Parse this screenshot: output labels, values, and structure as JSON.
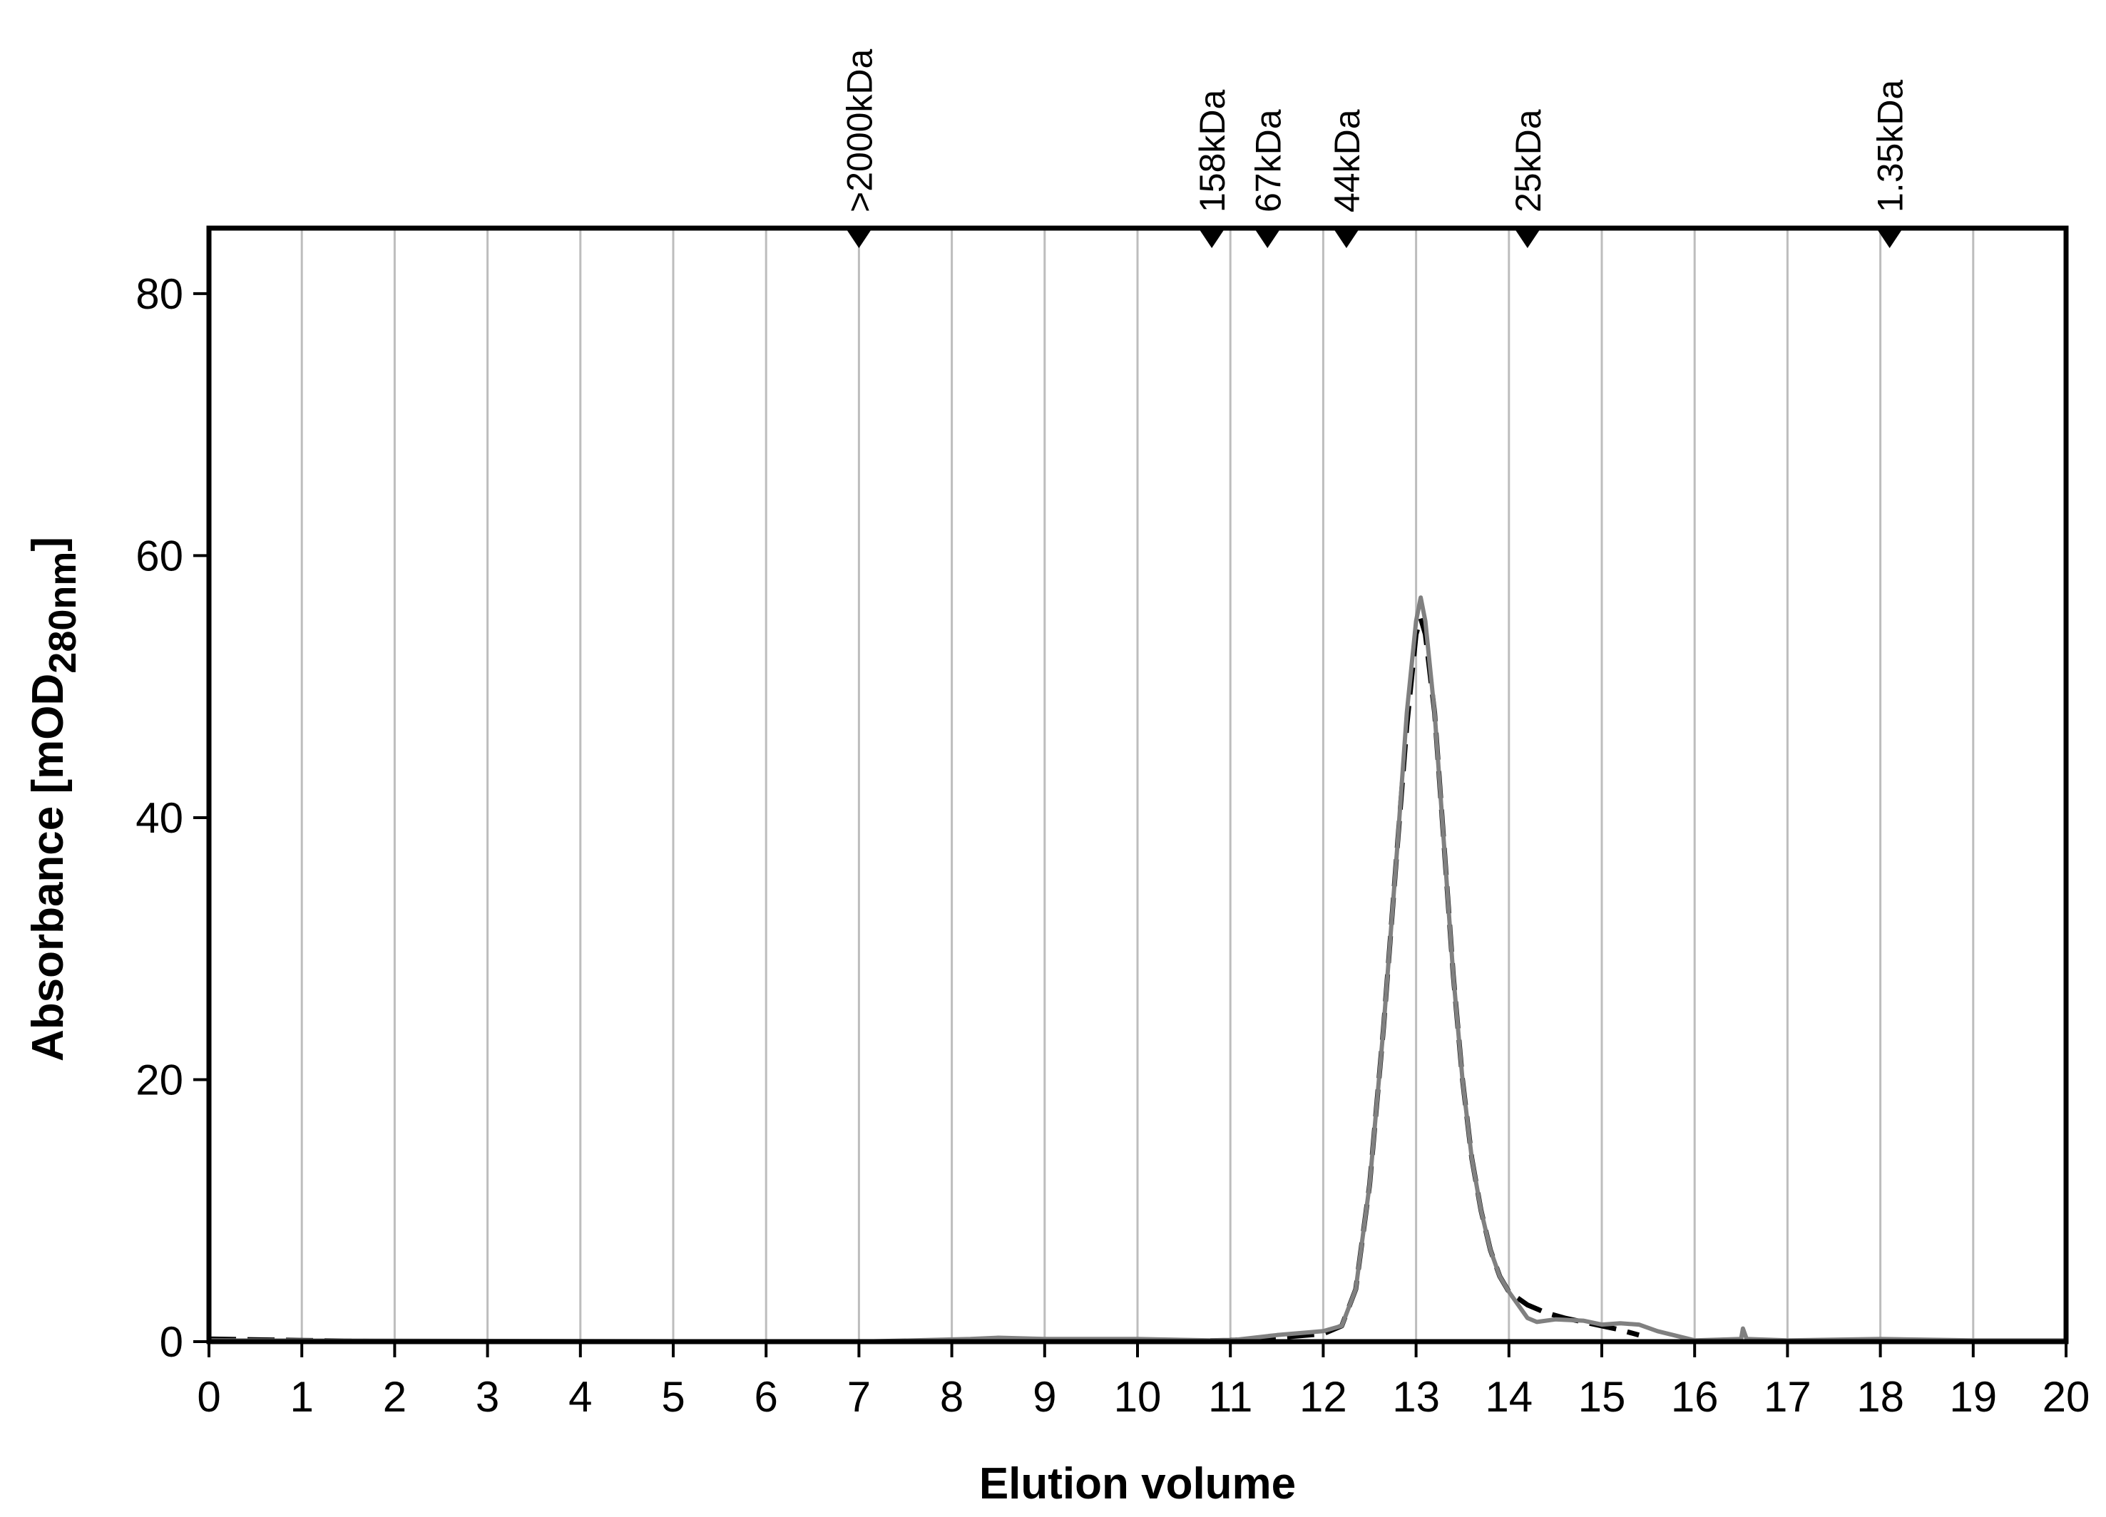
{
  "chart_data": {
    "type": "line",
    "xlabel": "Elution volume",
    "ylabel": {
      "prefix": "Absorbance [mOD",
      "subscript": "280nm",
      "suffix": "]"
    },
    "xlim": [
      0,
      20
    ],
    "ylim": [
      0,
      85
    ],
    "xticks": [
      0,
      1,
      2,
      3,
      4,
      5,
      6,
      7,
      8,
      9,
      10,
      11,
      12,
      13,
      14,
      15,
      16,
      17,
      18,
      19,
      20
    ],
    "yticks": [
      0,
      20,
      40,
      60,
      80
    ],
    "grid": "vertical",
    "legend": "none",
    "markers": [
      {
        "label": ">2000kDa",
        "x": 7.0
      },
      {
        "label": "158kDa",
        "x": 10.8
      },
      {
        "label": "67kDa",
        "x": 11.4
      },
      {
        "label": "44kDa",
        "x": 12.25
      },
      {
        "label": "25kDa",
        "x": 14.2
      },
      {
        "label": "1.35kDa",
        "x": 18.1
      }
    ],
    "series": [
      {
        "style": "dashed",
        "color": "#000000",
        "points": [
          [
            0,
            0.2
          ],
          [
            1,
            0.1
          ],
          [
            2,
            0
          ],
          [
            8,
            0
          ],
          [
            10,
            0
          ],
          [
            11,
            0.1
          ],
          [
            11.5,
            0.3
          ],
          [
            12,
            0.6
          ],
          [
            12.2,
            1.2
          ],
          [
            12.35,
            4
          ],
          [
            12.5,
            12
          ],
          [
            12.65,
            24
          ],
          [
            12.8,
            38
          ],
          [
            12.9,
            47
          ],
          [
            13.0,
            54
          ],
          [
            13.05,
            55.2
          ],
          [
            13.1,
            54
          ],
          [
            13.2,
            48
          ],
          [
            13.3,
            38
          ],
          [
            13.4,
            28
          ],
          [
            13.5,
            20
          ],
          [
            13.6,
            14
          ],
          [
            13.7,
            10
          ],
          [
            13.8,
            7
          ],
          [
            13.9,
            5
          ],
          [
            14.0,
            3.8
          ],
          [
            14.2,
            2.8
          ],
          [
            14.4,
            2.2
          ],
          [
            14.6,
            1.8
          ],
          [
            14.8,
            1.5
          ],
          [
            15.0,
            1.2
          ],
          [
            15.2,
            0.9
          ],
          [
            15.4,
            0.5
          ]
        ]
      },
      {
        "style": "solid",
        "color": "#808080",
        "points": [
          [
            0,
            0.1
          ],
          [
            7,
            0
          ],
          [
            8.2,
            0.2
          ],
          [
            8.5,
            0.3
          ],
          [
            9,
            0.2
          ],
          [
            10,
            0.2
          ],
          [
            10.8,
            0.1
          ],
          [
            11,
            0.1
          ],
          [
            11.5,
            0.5
          ],
          [
            12,
            0.8
          ],
          [
            12.2,
            1.2
          ],
          [
            12.35,
            4
          ],
          [
            12.5,
            12
          ],
          [
            12.65,
            24
          ],
          [
            12.8,
            38
          ],
          [
            12.9,
            48
          ],
          [
            13.0,
            55
          ],
          [
            13.05,
            56.8
          ],
          [
            13.1,
            55
          ],
          [
            13.2,
            48
          ],
          [
            13.3,
            38
          ],
          [
            13.4,
            28
          ],
          [
            13.5,
            20
          ],
          [
            13.6,
            14
          ],
          [
            13.7,
            10
          ],
          [
            13.8,
            7
          ],
          [
            13.9,
            5
          ],
          [
            14.0,
            3.8
          ],
          [
            14.2,
            1.8
          ],
          [
            14.3,
            1.5
          ],
          [
            14.5,
            1.7
          ],
          [
            14.8,
            1.6
          ],
          [
            15.0,
            1.3
          ],
          [
            15.2,
            1.4
          ],
          [
            15.4,
            1.3
          ],
          [
            15.6,
            0.8
          ],
          [
            16.0,
            0.1
          ],
          [
            16.5,
            0.2
          ],
          [
            16.52,
            1.0
          ],
          [
            16.56,
            0.2
          ],
          [
            17,
            0.1
          ],
          [
            18,
            0.2
          ],
          [
            19,
            0.1
          ],
          [
            20,
            0.1
          ]
        ]
      }
    ]
  }
}
